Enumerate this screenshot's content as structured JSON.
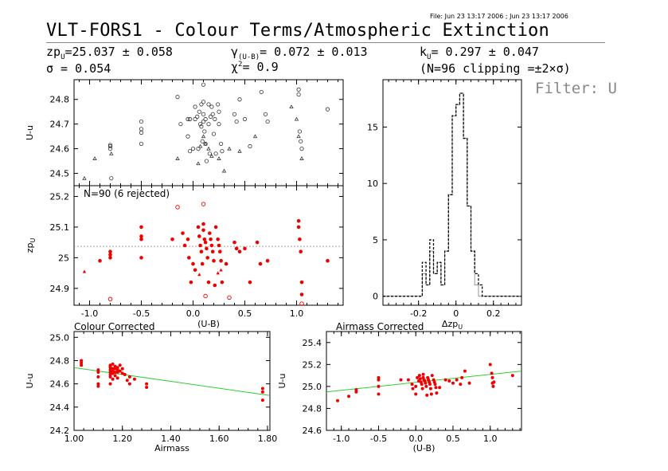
{
  "header": {
    "file_stamp": "File: Jun 23 13:17 2006 ; Jun 23 13:17 2006",
    "title": "VLT-FORS1 - Colour Terms/Atmospheric Extinction",
    "zp": "zp",
    "zp_sub": "U",
    "zp_value": "=25.037 ± 0.058",
    "sigma": "σ = 0.054",
    "gamma": "γ",
    "gamma_sub": "(U-B)",
    "gamma_value": "= 0.072 ± 0.013",
    "chi": "χ",
    "chi_sup": "2",
    "chi_value": "= 0.9",
    "k": "k",
    "k_sub": "U",
    "k_value": "= 0.297 ± 0.047",
    "clipping": "(N=96 clipping =±2×σ)",
    "filter": "Filter: U"
  },
  "chart_data": [
    {
      "id": "upper",
      "type": "scatter",
      "ylabel": "U-u",
      "xlim": [
        -1.15,
        1.45
      ],
      "ylim": [
        24.45,
        24.88
      ],
      "yticks": [
        24.5,
        24.6,
        24.7,
        24.8
      ],
      "circles": [
        [
          -0.8,
          24.6
        ],
        [
          -0.8,
          24.615
        ],
        [
          -0.8,
          24.61
        ],
        [
          -0.5,
          24.71
        ],
        [
          -0.5,
          24.68
        ],
        [
          -0.5,
          24.665
        ],
        [
          -0.5,
          24.62
        ],
        [
          -0.79,
          24.48
        ],
        [
          -0.15,
          24.81
        ],
        [
          -0.12,
          24.7
        ],
        [
          -0.05,
          24.72
        ],
        [
          -0.05,
          24.65
        ],
        [
          -0.03,
          24.59
        ],
        [
          0.0,
          24.6
        ],
        [
          0.02,
          24.77
        ],
        [
          0.02,
          24.72
        ],
        [
          0.04,
          24.73
        ],
        [
          0.06,
          24.75
        ],
        [
          0.07,
          24.7
        ],
        [
          0.08,
          24.69
        ],
        [
          0.1,
          24.86
        ],
        [
          0.1,
          24.79
        ],
        [
          0.1,
          24.74
        ],
        [
          0.1,
          24.71
        ],
        [
          0.11,
          24.67
        ],
        [
          0.12,
          24.72
        ],
        [
          0.13,
          24.55
        ],
        [
          0.15,
          24.78
        ],
        [
          0.15,
          24.7
        ],
        [
          0.16,
          24.58
        ],
        [
          0.18,
          24.77
        ],
        [
          0.19,
          24.74
        ],
        [
          0.2,
          24.66
        ],
        [
          0.21,
          24.72
        ],
        [
          0.24,
          24.78
        ],
        [
          0.25,
          24.75
        ],
        [
          0.25,
          24.7
        ],
        [
          0.27,
          24.62
        ],
        [
          0.28,
          24.59
        ],
        [
          0.4,
          24.74
        ],
        [
          0.42,
          24.71
        ],
        [
          0.45,
          24.8
        ],
        [
          0.5,
          24.72
        ],
        [
          0.55,
          24.61
        ],
        [
          0.66,
          24.83
        ],
        [
          0.7,
          24.74
        ],
        [
          0.72,
          24.71
        ],
        [
          1.02,
          24.84
        ],
        [
          1.02,
          24.82
        ],
        [
          1.03,
          24.67
        ],
        [
          1.04,
          24.63
        ],
        [
          1.05,
          24.6
        ],
        [
          1.3,
          24.76
        ],
        [
          0.05,
          24.6
        ],
        [
          0.09,
          24.63
        ],
        [
          0.22,
          24.58
        ],
        [
          0.08,
          24.78
        ],
        [
          0.12,
          24.62
        ],
        [
          -0.03,
          24.72
        ],
        [
          0.17,
          24.73
        ]
      ],
      "triangles": [
        [
          -1.05,
          24.48
        ],
        [
          -0.95,
          24.56
        ],
        [
          -0.79,
          24.58
        ],
        [
          -0.15,
          24.56
        ],
        [
          0.05,
          24.54
        ],
        [
          0.07,
          24.61
        ],
        [
          0.1,
          24.65
        ],
        [
          0.12,
          24.62
        ],
        [
          0.18,
          24.57
        ],
        [
          0.25,
          24.56
        ],
        [
          0.3,
          24.51
        ],
        [
          0.35,
          24.6
        ],
        [
          0.45,
          24.59
        ],
        [
          0.6,
          24.65
        ],
        [
          0.95,
          24.77
        ],
        [
          1.0,
          24.72
        ],
        [
          1.02,
          24.65
        ],
        [
          1.05,
          24.56
        ],
        [
          0.15,
          24.6
        ]
      ]
    },
    {
      "id": "zp",
      "type": "scatter",
      "ylabel": "zp",
      "ylabel_sub": "U",
      "xlabel": "(U-B)",
      "annotation": "N=90 (6 rejected)",
      "xlim": [
        -1.15,
        1.45
      ],
      "ylim": [
        24.845,
        25.235
      ],
      "xticks": [
        -1.0,
        -0.5,
        0.0,
        0.5,
        1.0
      ],
      "xtick_labels": [
        "-1.0",
        "-0.5",
        "0.0",
        "0.5",
        "1.0"
      ],
      "yticks": [
        24.9,
        25.0,
        25.1,
        25.2
      ],
      "mean_line": 25.037,
      "points": [
        [
          -0.9,
          24.99
        ],
        [
          -0.8,
          25.02
        ],
        [
          -0.8,
          25.01
        ],
        [
          -0.8,
          25.0
        ],
        [
          -0.5,
          25.1
        ],
        [
          -0.5,
          25.07
        ],
        [
          -0.5,
          25.06
        ],
        [
          -0.5,
          25.0
        ],
        [
          -0.2,
          25.06
        ],
        [
          -0.1,
          25.08
        ],
        [
          -0.08,
          25.04
        ],
        [
          -0.05,
          25.06
        ],
        [
          -0.04,
          25.0
        ],
        [
          -0.02,
          24.92
        ],
        [
          0.0,
          24.98
        ],
        [
          0.02,
          24.96
        ],
        [
          0.05,
          25.1
        ],
        [
          0.06,
          25.07
        ],
        [
          0.07,
          25.04
        ],
        [
          0.08,
          25.02
        ],
        [
          0.09,
          24.98
        ],
        [
          0.1,
          25.11
        ],
        [
          0.1,
          25.09
        ],
        [
          0.11,
          25.06
        ],
        [
          0.12,
          25.05
        ],
        [
          0.13,
          25.03
        ],
        [
          0.14,
          25.0
        ],
        [
          0.15,
          24.92
        ],
        [
          0.16,
          25.08
        ],
        [
          0.17,
          25.06
        ],
        [
          0.18,
          25.04
        ],
        [
          0.19,
          25.02
        ],
        [
          0.2,
          24.99
        ],
        [
          0.21,
          24.91
        ],
        [
          0.22,
          25.1
        ],
        [
          0.24,
          25.06
        ],
        [
          0.25,
          25.04
        ],
        [
          0.26,
          25.02
        ],
        [
          0.27,
          24.99
        ],
        [
          0.28,
          24.92
        ],
        [
          0.32,
          24.98
        ],
        [
          0.4,
          25.05
        ],
        [
          0.42,
          25.03
        ],
        [
          0.45,
          25.02
        ],
        [
          0.5,
          25.03
        ],
        [
          0.55,
          24.92
        ],
        [
          0.62,
          25.05
        ],
        [
          0.65,
          24.98
        ],
        [
          0.72,
          24.99
        ],
        [
          1.02,
          25.12
        ],
        [
          1.02,
          25.1
        ],
        [
          1.03,
          25.06
        ],
        [
          1.04,
          25.02
        ],
        [
          1.05,
          24.92
        ],
        [
          1.05,
          24.88
        ],
        [
          1.3,
          24.99
        ]
      ],
      "triangles": [
        [
          -1.05,
          24.955
        ],
        [
          0.06,
          24.945
        ],
        [
          0.24,
          24.95
        ],
        [
          0.27,
          24.96
        ]
      ],
      "rejected": [
        [
          -0.15,
          25.165
        ],
        [
          0.1,
          25.175
        ],
        [
          0.12,
          24.875
        ],
        [
          0.35,
          24.87
        ],
        [
          -0.8,
          24.865
        ],
        [
          1.05,
          24.85
        ]
      ]
    },
    {
      "id": "histogram",
      "type": "histogram",
      "xlabel": "Δzp",
      "xlabel_sub": "U",
      "xlim": [
        -0.39,
        0.35
      ],
      "ylim": [
        -0.8,
        19.2
      ],
      "xticks": [
        -0.2,
        0.0,
        0.2
      ],
      "xtick_labels": [
        "-0.2",
        "0",
        "0.2"
      ],
      "yticks": [
        0,
        5,
        10,
        15
      ],
      "bin_edges": [
        -0.2,
        -0.18,
        -0.16,
        -0.14,
        -0.12,
        -0.1,
        -0.08,
        -0.06,
        -0.04,
        -0.02,
        0.0,
        0.02,
        0.04,
        0.06,
        0.08,
        0.1,
        0.12
      ],
      "counts_all": [
        0,
        3,
        1,
        5,
        2,
        3,
        1,
        4,
        9,
        16,
        17,
        18,
        14,
        8,
        4,
        2,
        1
      ],
      "counts_kept": [
        0,
        2,
        1,
        4,
        2,
        3,
        1,
        4,
        9,
        16,
        17,
        18,
        14,
        8,
        4,
        1,
        0
      ]
    },
    {
      "id": "colour",
      "type": "scatter",
      "title": "Colour Corrected",
      "ylabel": "U-u",
      "xlabel": "Airmass",
      "xlim": [
        1.0,
        1.81
      ],
      "ylim": [
        24.2,
        25.05
      ],
      "xticks": [
        1.0,
        1.2,
        1.4,
        1.6,
        1.8
      ],
      "xtick_labels": [
        "1.00",
        "1.20",
        "1.40",
        "1.60",
        "1.80"
      ],
      "yticks": [
        24.2,
        24.4,
        24.6,
        24.8,
        25.0
      ],
      "ytick_labels": [
        "24.2",
        "24.4",
        "24.6",
        "24.8",
        "25.0"
      ],
      "fit_line": [
        [
          1.0,
          24.74
        ],
        [
          1.81,
          24.5
        ]
      ],
      "points": [
        [
          1.03,
          24.8
        ],
        [
          1.03,
          24.78
        ],
        [
          1.03,
          24.76
        ],
        [
          1.1,
          24.72
        ],
        [
          1.1,
          24.7
        ],
        [
          1.1,
          24.66
        ],
        [
          1.1,
          24.6
        ],
        [
          1.1,
          24.58
        ],
        [
          1.15,
          24.76
        ],
        [
          1.15,
          24.74
        ],
        [
          1.15,
          24.72
        ],
        [
          1.15,
          24.7
        ],
        [
          1.15,
          24.68
        ],
        [
          1.15,
          24.66
        ],
        [
          1.15,
          24.6
        ],
        [
          1.16,
          24.77
        ],
        [
          1.16,
          24.73
        ],
        [
          1.16,
          24.71
        ],
        [
          1.16,
          24.69
        ],
        [
          1.17,
          24.75
        ],
        [
          1.17,
          24.73
        ],
        [
          1.17,
          24.7
        ],
        [
          1.17,
          24.67
        ],
        [
          1.18,
          24.74
        ],
        [
          1.18,
          24.72
        ],
        [
          1.18,
          24.7
        ],
        [
          1.18,
          24.65
        ],
        [
          1.19,
          24.76
        ],
        [
          1.19,
          24.71
        ],
        [
          1.2,
          24.73
        ],
        [
          1.2,
          24.69
        ],
        [
          1.21,
          24.68
        ],
        [
          1.22,
          24.63
        ],
        [
          1.23,
          24.66
        ],
        [
          1.23,
          24.6
        ],
        [
          1.25,
          24.64
        ],
        [
          1.3,
          24.6
        ],
        [
          1.3,
          24.57
        ],
        [
          1.15,
          24.75
        ],
        [
          1.16,
          24.64
        ],
        [
          1.78,
          24.56
        ],
        [
          1.78,
          24.53
        ],
        [
          1.78,
          24.46
        ]
      ]
    },
    {
      "id": "airmass",
      "type": "scatter",
      "title": "Airmass Corrected",
      "ylabel": "U-u",
      "xlabel": "(U-B)",
      "xlim": [
        -1.2,
        1.42
      ],
      "ylim": [
        24.6,
        25.5
      ],
      "xticks": [
        -1.0,
        -0.5,
        0.0,
        0.5,
        1.0
      ],
      "xtick_labels": [
        "-1.0",
        "-0.5",
        "0.0",
        "0.5",
        "1.0"
      ],
      "yticks": [
        24.6,
        24.8,
        25.0,
        25.2,
        25.4
      ],
      "ytick_labels": [
        "24.6",
        "24.8",
        "25.0",
        "25.2",
        "25.4"
      ],
      "fit_line": [
        [
          -1.2,
          24.95
        ],
        [
          1.42,
          25.14
        ]
      ],
      "points": [
        [
          -1.05,
          24.87
        ],
        [
          -0.9,
          24.91
        ],
        [
          -0.8,
          24.95
        ],
        [
          -0.8,
          24.97
        ],
        [
          -0.5,
          25.08
        ],
        [
          -0.5,
          25.06
        ],
        [
          -0.5,
          25.0
        ],
        [
          -0.5,
          24.93
        ],
        [
          -0.2,
          25.06
        ],
        [
          -0.1,
          25.06
        ],
        [
          -0.05,
          25.02
        ],
        [
          -0.04,
          24.98
        ],
        [
          0.0,
          25.0
        ],
        [
          0.0,
          24.93
        ],
        [
          0.02,
          25.08
        ],
        [
          0.04,
          25.05
        ],
        [
          0.05,
          25.1
        ],
        [
          0.06,
          25.07
        ],
        [
          0.07,
          25.04
        ],
        [
          0.08,
          25.02
        ],
        [
          0.09,
          24.98
        ],
        [
          0.1,
          25.11
        ],
        [
          0.1,
          25.08
        ],
        [
          0.11,
          25.06
        ],
        [
          0.12,
          25.05
        ],
        [
          0.13,
          25.03
        ],
        [
          0.14,
          25.0
        ],
        [
          0.15,
          24.92
        ],
        [
          0.16,
          25.08
        ],
        [
          0.17,
          25.06
        ],
        [
          0.18,
          25.04
        ],
        [
          0.19,
          25.02
        ],
        [
          0.2,
          24.98
        ],
        [
          0.21,
          24.93
        ],
        [
          0.22,
          25.1
        ],
        [
          0.24,
          25.06
        ],
        [
          0.25,
          25.04
        ],
        [
          0.26,
          25.02
        ],
        [
          0.27,
          24.99
        ],
        [
          0.28,
          24.94
        ],
        [
          0.32,
          24.99
        ],
        [
          0.4,
          25.06
        ],
        [
          0.45,
          25.05
        ],
        [
          0.5,
          25.03
        ],
        [
          0.55,
          25.06
        ],
        [
          0.6,
          25.02
        ],
        [
          0.62,
          25.08
        ],
        [
          0.66,
          25.14
        ],
        [
          0.72,
          25.03
        ],
        [
          1.0,
          25.2
        ],
        [
          1.02,
          25.12
        ],
        [
          1.03,
          25.08
        ],
        [
          1.03,
          25.03
        ],
        [
          1.04,
          25.0
        ],
        [
          1.05,
          25.04
        ],
        [
          1.3,
          25.1
        ]
      ]
    }
  ]
}
